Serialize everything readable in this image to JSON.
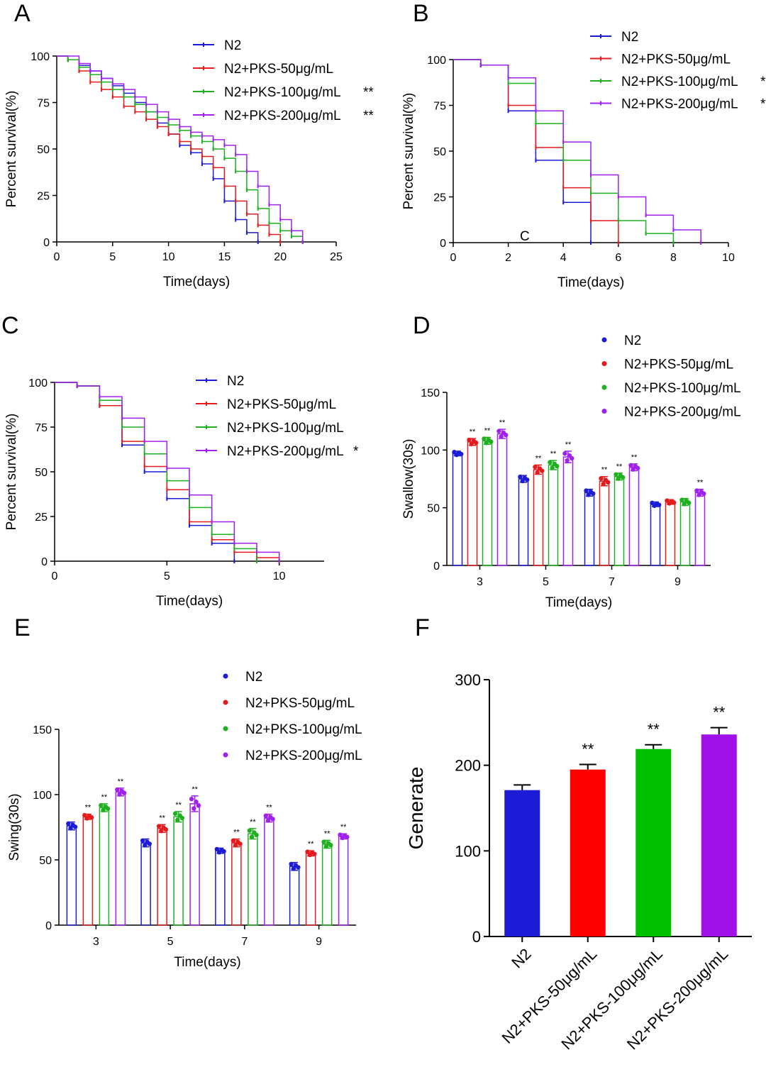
{
  "panel_labels": [
    "A",
    "B",
    "C",
    "D",
    "E",
    "F"
  ],
  "colors": {
    "N2": "#1c1cd6",
    "PKS50": "#e41a1c",
    "PKS100": "#1fb01f",
    "PKS200": "#a020f0"
  },
  "chart_data": [
    {
      "id": "A",
      "type": "line",
      "step": true,
      "xlabel": "Time(days)",
      "ylabel": "Percent survival(%)",
      "xlim": [
        0,
        25
      ],
      "ylim": [
        0,
        100
      ],
      "xticks": [
        0,
        5,
        10,
        15,
        20,
        25
      ],
      "yticks": [
        0,
        25,
        50,
        75,
        100
      ],
      "series": [
        {
          "name": "N2",
          "sig": "",
          "color": "#1c1cd6",
          "x": [
            0,
            1,
            2,
            3,
            4,
            5,
            6,
            7,
            8,
            9,
            10,
            11,
            12,
            13,
            14,
            15,
            16,
            17,
            18
          ],
          "y": [
            100,
            98,
            95,
            92,
            88,
            84,
            80,
            75,
            70,
            64,
            58,
            52,
            48,
            42,
            34,
            22,
            12,
            5,
            0
          ]
        },
        {
          "name": "N2+PKS-50μg/mL",
          "sig": "",
          "color": "#e41a1c",
          "x": [
            0,
            1,
            2,
            3,
            4,
            5,
            6,
            7,
            8,
            9,
            10,
            11,
            12,
            13,
            14,
            15,
            16,
            17,
            18,
            19,
            20
          ],
          "y": [
            100,
            98,
            92,
            86,
            82,
            78,
            73,
            70,
            66,
            62,
            58,
            54,
            50,
            46,
            40,
            30,
            22,
            15,
            9,
            4,
            0
          ]
        },
        {
          "name": "N2+PKS-100μg/mL",
          "sig": "**",
          "color": "#1fb01f",
          "x": [
            0,
            1,
            2,
            3,
            4,
            5,
            6,
            7,
            8,
            9,
            10,
            11,
            12,
            13,
            14,
            15,
            16,
            17,
            18,
            19,
            20,
            21,
            22
          ],
          "y": [
            100,
            98,
            94,
            90,
            86,
            82,
            78,
            74,
            70,
            67,
            63,
            60,
            57,
            54,
            50,
            45,
            38,
            28,
            18,
            10,
            6,
            3,
            0
          ]
        },
        {
          "name": "N2+PKS-200μg/mL",
          "sig": "**",
          "color": "#a020f0",
          "x": [
            0,
            2,
            3,
            4,
            5,
            6,
            7,
            8,
            9,
            10,
            11,
            12,
            13,
            14,
            15,
            16,
            17,
            18,
            19,
            20,
            21,
            22
          ],
          "y": [
            100,
            96,
            92,
            88,
            85,
            82,
            78,
            74,
            70,
            66,
            62,
            59,
            57,
            55,
            52,
            47,
            38,
            30,
            20,
            12,
            6,
            0
          ]
        }
      ]
    },
    {
      "id": "B",
      "type": "line",
      "step": true,
      "xlabel": "Time(days)",
      "ylabel": "Percent survival(%)",
      "annotation": "C",
      "xlim": [
        0,
        10
      ],
      "ylim": [
        0,
        100
      ],
      "xticks": [
        0,
        2,
        4,
        6,
        8,
        10
      ],
      "yticks": [
        0,
        25,
        50,
        75,
        100
      ],
      "series": [
        {
          "name": "N2",
          "sig": "",
          "color": "#1c1cd6",
          "x": [
            0,
            1,
            2,
            3,
            4,
            5
          ],
          "y": [
            100,
            97,
            72,
            45,
            22,
            0
          ]
        },
        {
          "name": "N2+PKS-50μg/mL",
          "sig": "",
          "color": "#e41a1c",
          "x": [
            0,
            1,
            2,
            3,
            4,
            5,
            6
          ],
          "y": [
            100,
            97,
            75,
            52,
            30,
            12,
            0
          ]
        },
        {
          "name": "N2+PKS-100μg/mL",
          "sig": "**",
          "color": "#1fb01f",
          "x": [
            0,
            1,
            2,
            3,
            4,
            5,
            6,
            7,
            8
          ],
          "y": [
            100,
            97,
            87,
            65,
            45,
            27,
            12,
            5,
            0
          ]
        },
        {
          "name": "N2+PKS-200μg/mL",
          "sig": "**",
          "color": "#a020f0",
          "x": [
            0,
            1,
            2,
            3,
            4,
            5,
            6,
            7,
            8,
            9
          ],
          "y": [
            100,
            97,
            90,
            72,
            55,
            37,
            25,
            15,
            7,
            0
          ]
        }
      ]
    },
    {
      "id": "C",
      "type": "line",
      "step": true,
      "xlabel": "Time(days)",
      "ylabel": "Percent survival(%)",
      "xlim": [
        0,
        12
      ],
      "ylim": [
        0,
        100
      ],
      "xticks": [
        0,
        5,
        10
      ],
      "yticks": [
        0,
        25,
        50,
        75,
        100
      ],
      "series": [
        {
          "name": "N2",
          "sig": "",
          "color": "#1c1cd6",
          "x": [
            0,
            1,
            2,
            3,
            4,
            5,
            6,
            7,
            8
          ],
          "y": [
            100,
            98,
            87,
            65,
            50,
            35,
            20,
            10,
            0
          ]
        },
        {
          "name": "N2+PKS-50μg/mL",
          "sig": "",
          "color": "#e41a1c",
          "x": [
            0,
            1,
            2,
            3,
            4,
            5,
            6,
            7,
            8,
            9,
            10
          ],
          "y": [
            100,
            98,
            87,
            67,
            53,
            40,
            22,
            12,
            5,
            2,
            0
          ]
        },
        {
          "name": "N2+PKS-100μg/mL",
          "sig": "",
          "color": "#1fb01f",
          "x": [
            0,
            1,
            2,
            3,
            4,
            5,
            6,
            7,
            8,
            9
          ],
          "y": [
            100,
            98,
            90,
            75,
            60,
            45,
            30,
            15,
            7,
            0
          ]
        },
        {
          "name": "N2+PKS-200μg/mL",
          "sig": "*",
          "color": "#a020f0",
          "x": [
            0,
            1,
            2,
            3,
            4,
            5,
            6,
            7,
            8,
            9,
            10
          ],
          "y": [
            100,
            98,
            92,
            80,
            67,
            52,
            37,
            22,
            10,
            5,
            0
          ]
        }
      ]
    },
    {
      "id": "D",
      "type": "bar",
      "xlabel": "Time(days)",
      "ylabel": "Swallow(30s)",
      "ylim": [
        0,
        150
      ],
      "yticks": [
        0,
        50,
        100,
        150
      ],
      "categories": [
        "3",
        "5",
        "7",
        "9"
      ],
      "series": [
        {
          "name": "N2",
          "color": "#1c1cd6",
          "values": [
            97,
            75,
            63,
            53
          ],
          "err": [
            2,
            3,
            3,
            2
          ],
          "sig": [
            "",
            "",
            "",
            ""
          ]
        },
        {
          "name": "N2+PKS-50μg/mL",
          "color": "#e41a1c",
          "values": [
            107,
            83,
            73,
            55
          ],
          "err": [
            3,
            4,
            4,
            2
          ],
          "sig": [
            "**",
            "**",
            "**",
            ""
          ]
        },
        {
          "name": "N2+PKS-100μg/mL",
          "color": "#1fb01f",
          "values": [
            108,
            87,
            77,
            55
          ],
          "err": [
            3,
            4,
            3,
            3
          ],
          "sig": [
            "**",
            "**",
            "**",
            ""
          ]
        },
        {
          "name": "N2+PKS-200μg/mL",
          "color": "#a020f0",
          "values": [
            114,
            94,
            85,
            63
          ],
          "err": [
            4,
            5,
            3,
            3
          ],
          "sig": [
            "**",
            "**",
            "**",
            "**"
          ]
        }
      ]
    },
    {
      "id": "E",
      "type": "bar",
      "xlabel": "Time(days)",
      "ylabel": "Swing(30s)",
      "ylim": [
        0,
        150
      ],
      "yticks": [
        0,
        50,
        100,
        150
      ],
      "categories": [
        "3",
        "5",
        "7",
        "9"
      ],
      "series": [
        {
          "name": "N2",
          "color": "#1c1cd6",
          "values": [
            76,
            63,
            57,
            45
          ],
          "err": [
            3,
            3,
            2,
            3
          ],
          "sig": [
            "",
            "",
            "",
            ""
          ]
        },
        {
          "name": "N2+PKS-50μg/mL",
          "color": "#e41a1c",
          "values": [
            83,
            74,
            63,
            55
          ],
          "err": [
            2,
            3,
            3,
            2
          ],
          "sig": [
            "**",
            "**",
            "**",
            "**"
          ]
        },
        {
          "name": "N2+PKS-100μg/mL",
          "color": "#1fb01f",
          "values": [
            90,
            83,
            70,
            62
          ],
          "err": [
            3,
            4,
            4,
            3
          ],
          "sig": [
            "**",
            "**",
            "**",
            "**"
          ]
        },
        {
          "name": "N2+PKS-200μg/mL",
          "color": "#a020f0",
          "values": [
            102,
            93,
            82,
            68
          ],
          "err": [
            3,
            6,
            3,
            2
          ],
          "sig": [
            "**",
            "**",
            "**",
            "**"
          ]
        }
      ]
    },
    {
      "id": "F",
      "type": "bar",
      "xlabel": "",
      "ylabel": "Generate",
      "ylim": [
        0,
        300
      ],
      "yticks": [
        0,
        100,
        200,
        300
      ],
      "categories": [
        "N2",
        "N2+PKS-50μg/mL",
        "N2+PKS-100μg/mL",
        "N2+PKS-200μg/mL"
      ],
      "values": [
        171,
        195,
        219,
        236
      ],
      "err": [
        6,
        6,
        5,
        8
      ],
      "sig": [
        "",
        "**",
        "**",
        "**"
      ],
      "colors": [
        "#1c1cd6",
        "#ff0000",
        "#00c000",
        "#a010e8"
      ]
    }
  ]
}
